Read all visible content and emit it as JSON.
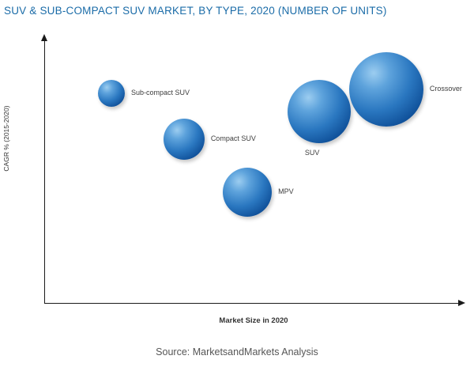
{
  "page": {
    "title": "SUV & SUB-COMPACT SUV MARKET, BY TYPE, 2020 (NUMBER OF UNITS)",
    "source": "Source: MarketsandMarkets Analysis"
  },
  "colors": {
    "title_text": "#1b6ca8",
    "bubble_fill": "#2a77c0",
    "axis": "#1a1a1a",
    "label_text": "#3d3d3d"
  },
  "chart_data": {
    "type": "scatter",
    "subtype": "bubble",
    "title": "SUV & SUB-COMPACT SUV MARKET, BY TYPE, 2020 (NUMBER OF UNITS)",
    "xlabel": "Market Size in 2020",
    "ylabel": "CAGR % (2015-2020)",
    "x_ticks": [],
    "y_ticks": [],
    "grid": false,
    "legend": "none",
    "note_axes": "axes are unlabeled arrows; bubble positions are relative fractions of plot area, radius in px",
    "bubbles": [
      {
        "label": "Sub-compact SUV",
        "x": 0.159,
        "y": 0.204,
        "r": 17,
        "label_pos": "right"
      },
      {
        "label": "Compact SUV",
        "x": 0.333,
        "y": 0.378,
        "r": 26,
        "label_pos": "right"
      },
      {
        "label": "MPV",
        "x": 0.485,
        "y": 0.58,
        "r": 31,
        "label_pos": "right"
      },
      {
        "label": "SUV",
        "x": 0.657,
        "y": 0.273,
        "r": 40,
        "label_pos": "below"
      },
      {
        "label": "Crossover",
        "x": 0.818,
        "y": 0.189,
        "r": 47,
        "label_pos": "right"
      }
    ]
  }
}
